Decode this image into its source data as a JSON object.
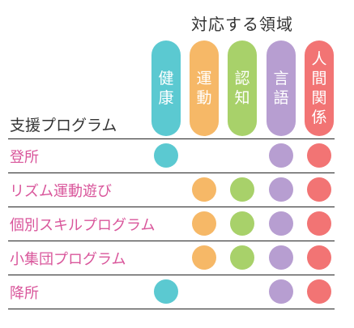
{
  "header": {
    "title": "対応する領域"
  },
  "section_label": "支援プログラム",
  "areas": [
    {
      "key": "kenko",
      "chars": [
        "健",
        "康"
      ],
      "color": "#5bc9d1"
    },
    {
      "key": "undo",
      "chars": [
        "運",
        "動"
      ],
      "color": "#f6b867"
    },
    {
      "key": "ninchi",
      "chars": [
        "認",
        "知"
      ],
      "color": "#a8d16a"
    },
    {
      "key": "gengo",
      "chars": [
        "言",
        "語"
      ],
      "color": "#b79ed1"
    },
    {
      "key": "ningen",
      "chars": [
        "人",
        "間",
        "関",
        "係"
      ],
      "color": "#f27474"
    }
  ],
  "programs": [
    {
      "label": "登所",
      "areas": [
        true,
        false,
        false,
        true,
        true
      ]
    },
    {
      "label": "リズム運動遊び",
      "areas": [
        false,
        true,
        true,
        true,
        true
      ]
    },
    {
      "label": "個別スキルプログラム",
      "areas": [
        false,
        true,
        true,
        true,
        true
      ]
    },
    {
      "label": "小集団プログラム",
      "areas": [
        false,
        true,
        true,
        true,
        true
      ]
    },
    {
      "label": "降所",
      "areas": [
        true,
        false,
        false,
        true,
        true
      ]
    }
  ]
}
